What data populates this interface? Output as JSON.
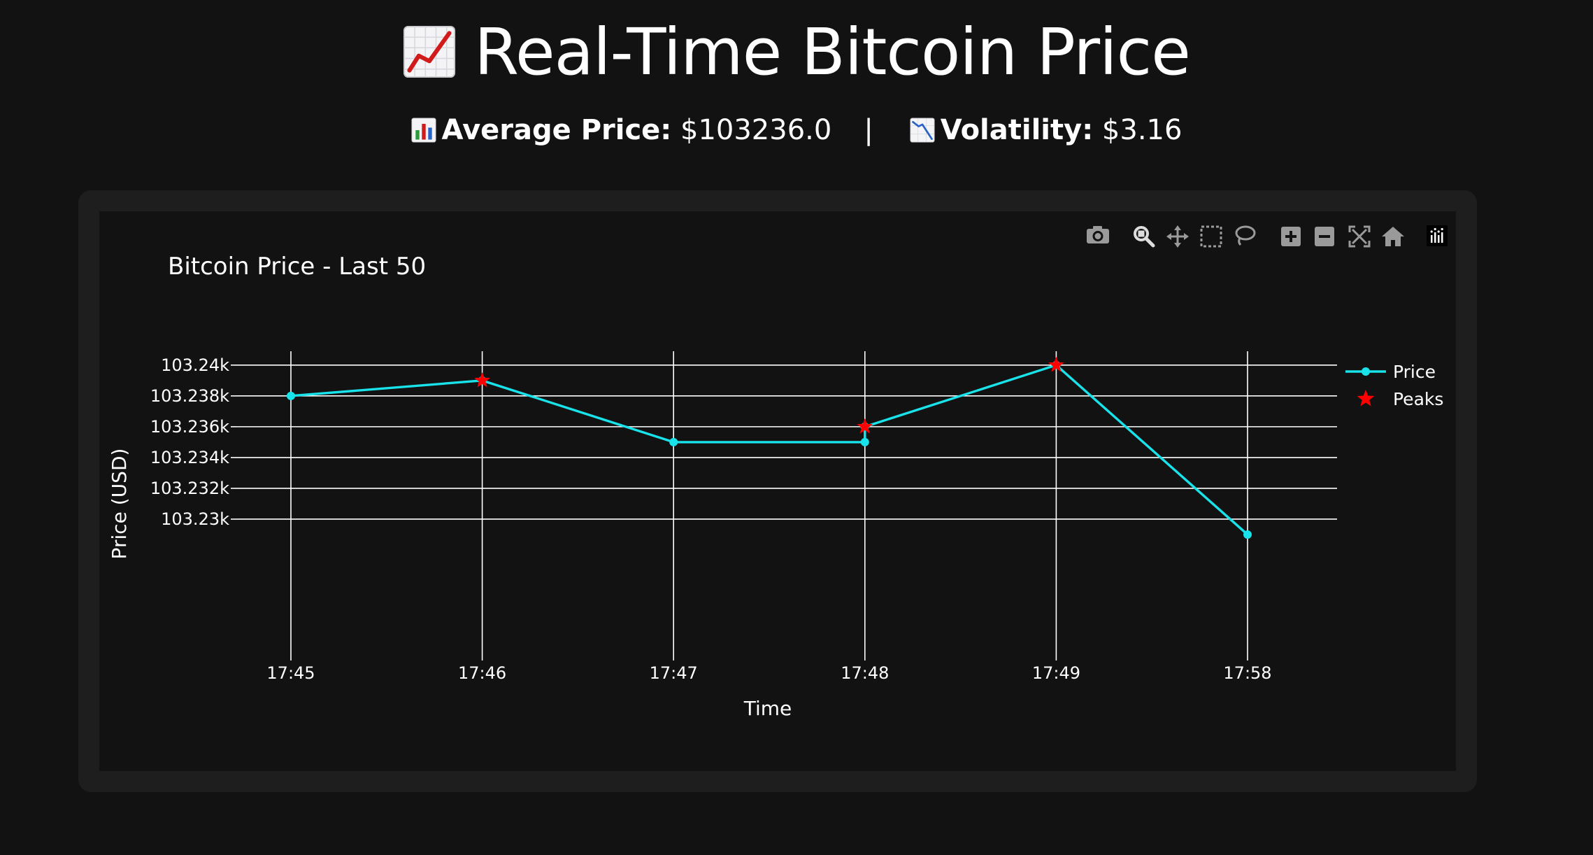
{
  "header": {
    "title": "Real-Time Bitcoin Price",
    "title_icon": "chart-increasing-icon"
  },
  "stats": {
    "avg_icon": "bar-chart-icon",
    "avg_label": "Average Price:",
    "avg_value": "$103236.0",
    "separator": "|",
    "vol_icon": "chart-decreasing-icon",
    "vol_label": "Volatility:",
    "vol_value": "$3.16"
  },
  "toolbar": {
    "buttons": [
      "camera-icon",
      "zoom-icon",
      "pan-icon",
      "box-select-icon",
      "lasso-select-icon",
      "zoom-in-icon",
      "zoom-out-icon",
      "autoscale-icon",
      "reset-axes-icon",
      "plotly-logo-icon"
    ]
  },
  "colors": {
    "background": "#121212",
    "card": "#1e1e1e",
    "price_line": "#19e3ea",
    "peaks": "#ff0000",
    "grid": "#ffffff"
  },
  "chart_data": {
    "type": "line",
    "title": "Bitcoin Price - Last 50",
    "xlabel": "Time",
    "ylabel": "Price (USD)",
    "categories": [
      "17:45",
      "17:46",
      "17:47",
      "17:48",
      "17:49",
      "17:58"
    ],
    "y_ticks": [
      103230,
      103232,
      103234,
      103236,
      103238,
      103240
    ],
    "y_tick_labels": [
      "103.23k",
      "103.232k",
      "103.234k",
      "103.236k",
      "103.238k",
      "103.24k"
    ],
    "ylim": [
      103229,
      103240.9
    ],
    "grid": true,
    "legend_position": "top-right",
    "series": [
      {
        "name": "Price",
        "mode": "lines+markers",
        "color": "#19e3ea",
        "x": [
          "17:45",
          "17:46",
          "17:47",
          "17:48",
          "17:48",
          "17:49",
          "17:58"
        ],
        "values": [
          103238,
          103239,
          103235,
          103235,
          103236,
          103240,
          103229
        ]
      },
      {
        "name": "Peaks",
        "mode": "markers",
        "marker": "star",
        "color": "#ff0000",
        "x": [
          "17:46",
          "17:48",
          "17:49"
        ],
        "values": [
          103239,
          103236,
          103240
        ]
      }
    ]
  }
}
